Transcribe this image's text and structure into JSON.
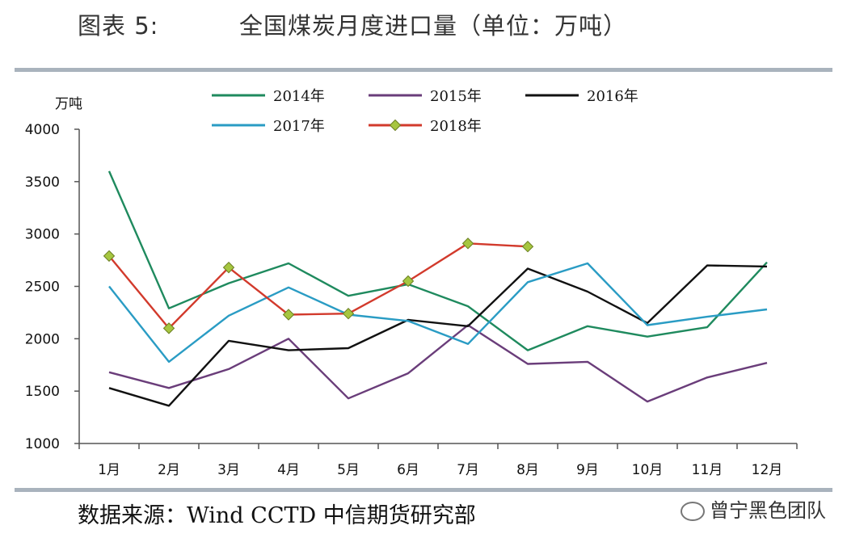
{
  "figure": {
    "label": "图表 5:",
    "title": "全国煤炭月度进口量（单位：万吨）"
  },
  "source": "数据来源：Wind CCTD 中信期货研究部",
  "watermark": "曾宁黑色团队",
  "chart_data": {
    "type": "line",
    "ylabel": "万吨",
    "xlabel": "",
    "ylim": [
      1000,
      4000
    ],
    "yticks": [
      1000,
      1500,
      2000,
      2500,
      3000,
      3500,
      4000
    ],
    "categories": [
      "1月",
      "2月",
      "3月",
      "4月",
      "5月",
      "6月",
      "7月",
      "8月",
      "9月",
      "10月",
      "11月",
      "12月"
    ],
    "legend_position": "top",
    "grid": false,
    "series": [
      {
        "name": "2014年",
        "color": "#1f8a5e",
        "marker": "none",
        "values": [
          3600,
          2290,
          2530,
          2720,
          2410,
          2520,
          2310,
          1890,
          2120,
          2020,
          2110,
          2730
        ]
      },
      {
        "name": "2015年",
        "color": "#6a3d7a",
        "marker": "none",
        "values": [
          1680,
          1530,
          1710,
          2000,
          1430,
          1670,
          2130,
          1760,
          1780,
          1400,
          1630,
          1770
        ]
      },
      {
        "name": "2016年",
        "color": "#111111",
        "marker": "none",
        "values": [
          1530,
          1360,
          1980,
          1890,
          1910,
          2180,
          2120,
          2670,
          2450,
          2150,
          2700,
          2690
        ]
      },
      {
        "name": "2017年",
        "color": "#2a9cc4",
        "marker": "none",
        "values": [
          2500,
          1780,
          2220,
          2490,
          2230,
          2170,
          1950,
          2540,
          2720,
          2130,
          2210,
          2280
        ]
      },
      {
        "name": "2018年",
        "color": "#d23a2c",
        "marker": "diamond",
        "marker_color": "#a6c640",
        "values": [
          2790,
          2100,
          2680,
          2230,
          2240,
          2550,
          2910,
          2880,
          null,
          null,
          null,
          null
        ]
      }
    ]
  }
}
